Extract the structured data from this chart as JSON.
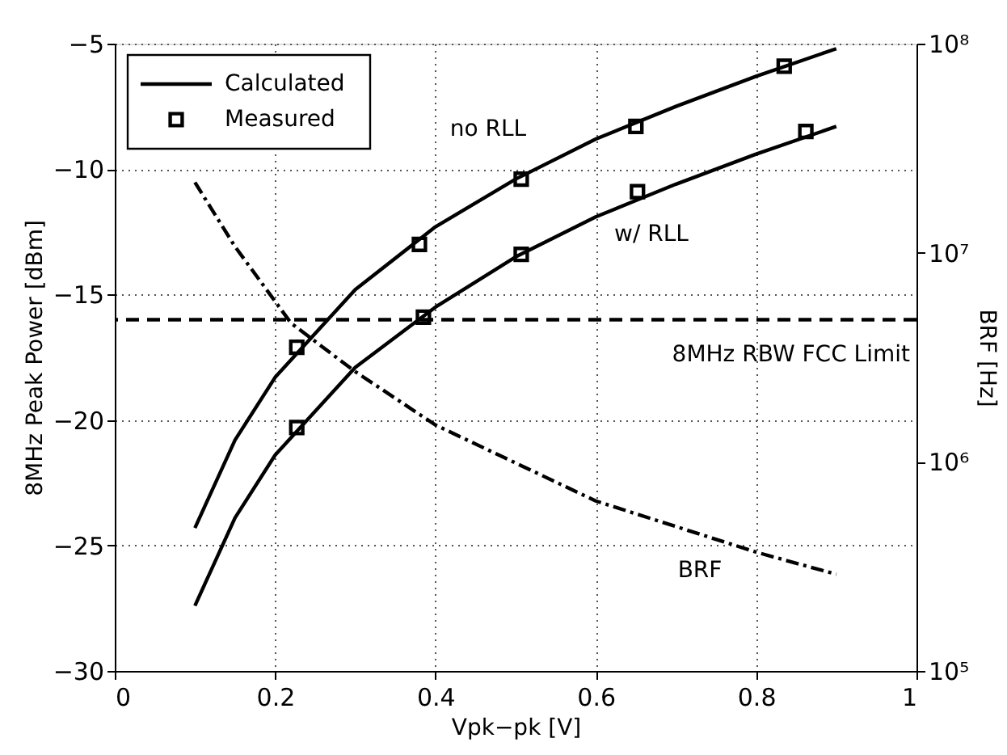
{
  "chart_data": {
    "type": "line",
    "xlabel": "Vpk−pk [V]",
    "ylabel": "8MHz Peak Power [dBm]",
    "y2label": "BRF [Hz]",
    "xlim": [
      0,
      1
    ],
    "xticks": [
      0,
      0.2,
      0.4,
      0.6,
      0.8,
      1
    ],
    "ylim": [
      -30,
      -5
    ],
    "yticks": [
      -30,
      -25,
      -20,
      -15,
      -10,
      -5
    ],
    "y2lim": [
      100000,
      100000000
    ],
    "y2ticks": [
      {
        "value": 100000,
        "label": "10⁵"
      },
      {
        "value": 1000000,
        "label": "10⁶"
      },
      {
        "value": 10000000,
        "label": "10⁷"
      },
      {
        "value": 100000000,
        "label": "10⁸"
      }
    ],
    "log": "y2",
    "grid": true,
    "legend": "top left",
    "series": [
      {
        "name": "Calculated",
        "color": "#000000",
        "line_style": "solid",
        "x": [
          0.1,
          0.15,
          0.2,
          0.3,
          0.4,
          0.5,
          0.6,
          0.7,
          0.8,
          0.9
        ],
        "values": [
          -24.3,
          -20.8,
          -18.3,
          -14.8,
          -12.3,
          -10.4,
          -8.8,
          -7.5,
          -6.3,
          -5.2
        ]
      },
      {
        "color": "#000000",
        "line_style": "solid",
        "x": [
          0.1,
          0.15,
          0.2,
          0.3,
          0.4,
          0.5,
          0.6,
          0.7,
          0.8,
          0.9
        ],
        "values": [
          -27.4,
          -23.9,
          -21.4,
          -17.9,
          -15.5,
          -13.5,
          -11.9,
          -10.6,
          -9.4,
          -8.3
        ]
      },
      {
        "name": "Measured",
        "type": "scatter",
        "color": "#000000",
        "marker": "square",
        "x": [
          0.227,
          0.38,
          0.507,
          0.65,
          0.835
        ],
        "values": [
          -17.1,
          -13.0,
          -10.4,
          -8.3,
          -5.9
        ]
      },
      {
        "type": "scatter",
        "color": "#000000",
        "marker": "square",
        "x": [
          0.227,
          0.385,
          0.507,
          0.652,
          0.862
        ],
        "values": [
          -20.3,
          -15.9,
          -13.4,
          -10.9,
          -8.5
        ]
      },
      {
        "axis": "y2",
        "color": "#000000",
        "line_style": "dashdot",
        "x": [
          0.1,
          0.15,
          0.22,
          0.3,
          0.4,
          0.6,
          0.8,
          0.9
        ],
        "values": [
          21700000,
          10700000,
          4600000,
          2700000,
          1500000,
          650000,
          370000,
          290000
        ]
      }
    ],
    "ref_lines": [
      {
        "axis": "y",
        "value": -16,
        "label": "8MHz RBW FCC Limit",
        "line_style": "dashed",
        "color": "#000000"
      }
    ],
    "annotations": [
      "no RLL",
      "w/ RLL",
      "BRF"
    ]
  }
}
